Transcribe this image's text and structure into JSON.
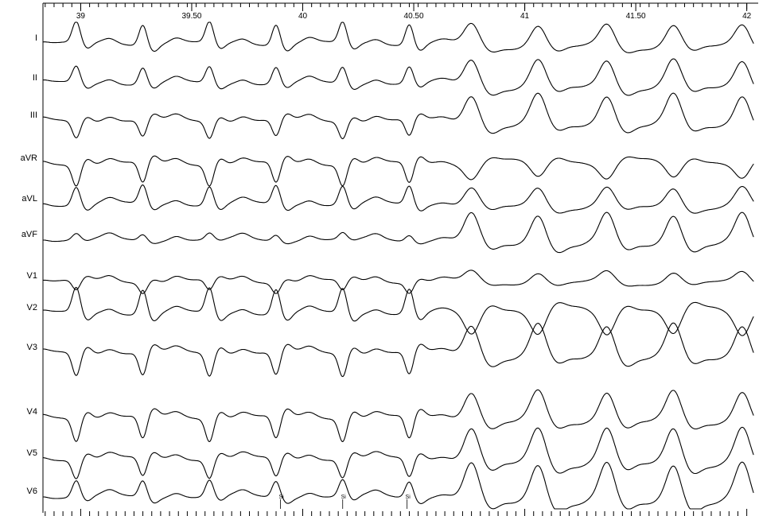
{
  "chart_data": {
    "type": "line",
    "title": "",
    "xlabel": "",
    "ylabel": "",
    "x_unit": "s",
    "xlim": [
      38.83,
      42.03
    ],
    "x_ticks": [
      {
        "value": 39,
        "label": "39"
      },
      {
        "value": 39.5,
        "label": "39.50"
      },
      {
        "value": 40,
        "label": "40"
      },
      {
        "value": 40.5,
        "label": "40.50"
      },
      {
        "value": 41,
        "label": "41"
      },
      {
        "value": 41.5,
        "label": "41.50"
      },
      {
        "value": 42,
        "label": "42"
      }
    ],
    "minor_tick_step": 0.04,
    "grid": false,
    "legend": "none",
    "transition_time": 40.72,
    "sinus_beats": [
      38.96,
      39.26,
      39.56,
      39.86,
      40.16,
      40.46
    ],
    "wide_beats": [
      40.72,
      41.02,
      41.33,
      41.63,
      41.94
    ],
    "leads": [
      {
        "name": "I"
      },
      {
        "name": "II"
      },
      {
        "name": "III"
      },
      {
        "name": "aVR"
      },
      {
        "name": "aVL"
      },
      {
        "name": "aVF"
      },
      {
        "name": "V1"
      },
      {
        "name": "V2"
      },
      {
        "name": "V3"
      },
      {
        "name": "V4"
      },
      {
        "name": "V5"
      },
      {
        "name": "V6"
      }
    ],
    "annotations": [
      {
        "label": "Si",
        "x": 39.9
      },
      {
        "label": "Si",
        "x": 40.18
      },
      {
        "label": "Si",
        "x": 40.47
      }
    ]
  }
}
